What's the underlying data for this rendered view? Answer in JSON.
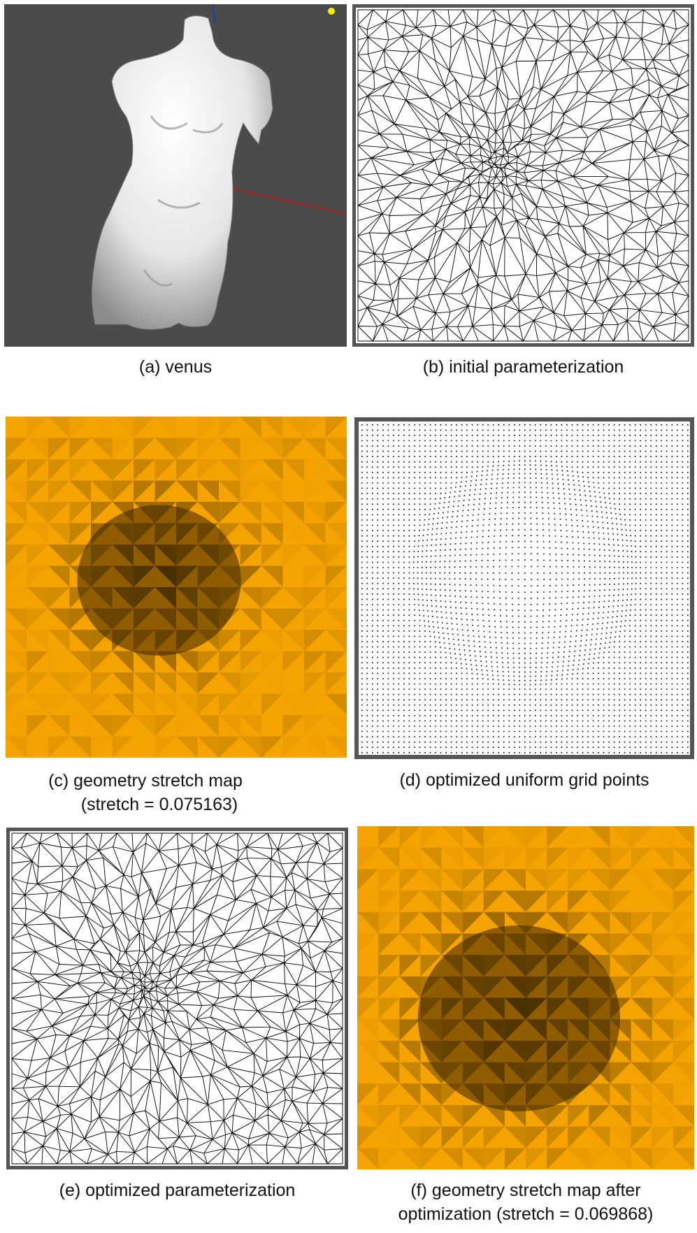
{
  "panels": [
    {
      "caption": [
        "(a) venus"
      ]
    },
    {
      "caption": [
        "(b) initial parameterization"
      ]
    },
    {
      "caption": [
        "(c) geometry stretch map",
        "(stretch = 0.075163)"
      ]
    },
    {
      "caption": [
        "(d) optimized uniform  grid  points"
      ]
    },
    {
      "caption": [
        "(e) optimized parameterization"
      ]
    },
    {
      "caption": [
        "(f) geometry stretch map after",
        "optimization (stretch = 0.069868)"
      ]
    }
  ]
}
